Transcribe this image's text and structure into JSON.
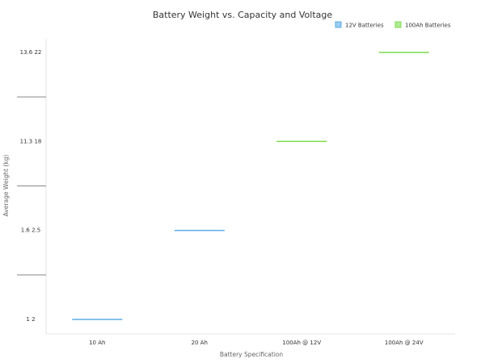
{
  "chart_data": {
    "type": "bar",
    "title": "Battery Weight vs. Capacity and Voltage",
    "x_label": "Battery Specification",
    "y_label": "Average Weight (kg)",
    "categories": [
      "10 Ah",
      "20 Ah",
      "100Ah @ 12V",
      "100Ah @ 24V"
    ],
    "yticks": [
      {
        "value": 2,
        "label": "1    2"
      },
      {
        "value": 2.5,
        "label": "1.6   2.5"
      },
      {
        "value": 18,
        "label": "11.3   18"
      },
      {
        "value": 22,
        "label": "13.6   22"
      }
    ],
    "y_scale": "ordinal",
    "legend": "top-right",
    "series": [
      {
        "name": "12V Batteries",
        "color": "#5aace8",
        "values": [
          2,
          2.5,
          null,
          null
        ]
      },
      {
        "name": "100Ah Batteries",
        "color": "#7ddc4e",
        "values": [
          null,
          null,
          18,
          22
        ]
      }
    ]
  }
}
